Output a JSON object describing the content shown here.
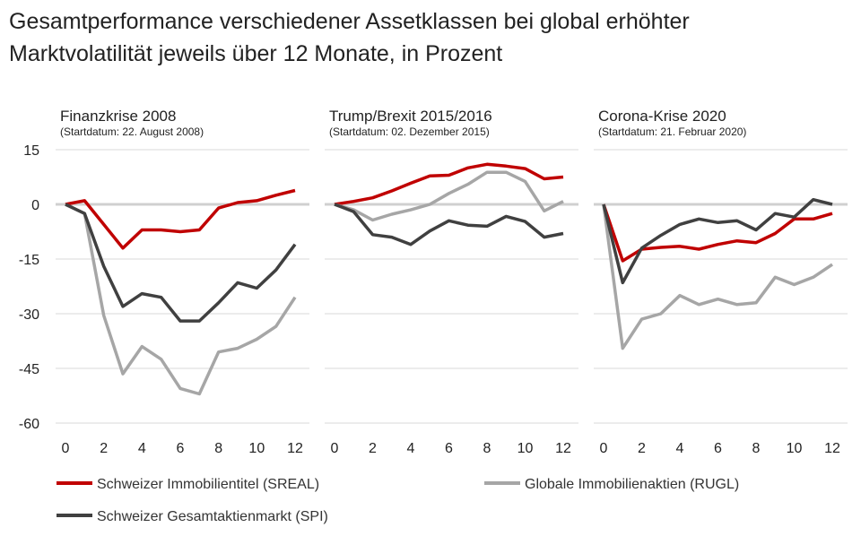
{
  "title_line1": "Gesamtperformance verschiedener Assetklassen bei global erhöhter",
  "title_line2": "Marktvolatilität jeweils über 12 Monate, in Prozent",
  "chart_data": [
    {
      "type": "line",
      "title": "Finanzkrise 2008",
      "subtitle": "(Startdatum: 22. August 2008)",
      "x": [
        0,
        1,
        2,
        3,
        4,
        5,
        6,
        7,
        8,
        9,
        10,
        11,
        12
      ],
      "x_ticks": [
        0,
        2,
        4,
        6,
        8,
        10,
        12
      ],
      "y_ticks": [
        15,
        0,
        -15,
        -30,
        -45,
        -60
      ],
      "ylim": [
        -60,
        15
      ],
      "grid": true,
      "series": [
        {
          "name": "Schweizer Immobilientitel (SREAL)",
          "color": "#c00000",
          "values": [
            0,
            1,
            -5.5,
            -12,
            -7,
            -7,
            -7.5,
            -7,
            -1,
            0.5,
            1,
            2.5,
            3.8
          ]
        },
        {
          "name": "Globale Immobilienaktien (RUGL)",
          "color": "#a6a6a6",
          "values": [
            0,
            -2.5,
            -30.5,
            -46.5,
            -39,
            -42.5,
            -50.5,
            -52,
            -40.5,
            -39.5,
            -37,
            -33.5,
            -25.5
          ]
        },
        {
          "name": "Schweizer Gesamtaktienmarkt (SPI)",
          "color": "#404040",
          "values": [
            0,
            -2.5,
            -17,
            -28,
            -24.5,
            -25.5,
            -32,
            -32,
            -27,
            -21.5,
            -23,
            -18,
            -11
          ]
        }
      ]
    },
    {
      "type": "line",
      "title": "Trump/Brexit 2015/2016",
      "subtitle": "(Startdatum: 02. Dezember 2015)",
      "x": [
        0,
        1,
        2,
        3,
        4,
        5,
        6,
        7,
        8,
        9,
        10,
        11,
        12
      ],
      "x_ticks": [
        0,
        2,
        4,
        6,
        8,
        10,
        12
      ],
      "ylim": [
        -60,
        15
      ],
      "grid": true,
      "series": [
        {
          "name": "Schweizer Immobilientitel (SREAL)",
          "color": "#c00000",
          "values": [
            0,
            0.8,
            1.8,
            3.7,
            5.8,
            7.8,
            8,
            10,
            11,
            10.5,
            9.8,
            7,
            7.5
          ]
        },
        {
          "name": "Globale Immobilienaktien (RUGL)",
          "color": "#a6a6a6",
          "values": [
            0,
            -1.5,
            -4.3,
            -2.7,
            -1.5,
            0,
            3,
            5.5,
            8.8,
            8.8,
            6.3,
            -1.8,
            0.8
          ]
        },
        {
          "name": "Schweizer Gesamtaktienmarkt (SPI)",
          "color": "#404040",
          "values": [
            0,
            -2,
            -8.3,
            -9,
            -11,
            -7.3,
            -4.5,
            -5.7,
            -6,
            -3.3,
            -4.7,
            -9,
            -8
          ]
        }
      ]
    },
    {
      "type": "line",
      "title": "Corona-Krise 2020",
      "subtitle": "(Startdatum: 21. Februar 2020)",
      "x": [
        0,
        1,
        2,
        3,
        4,
        5,
        6,
        7,
        8,
        9,
        10,
        11,
        12
      ],
      "x_ticks": [
        0,
        2,
        4,
        6,
        8,
        10,
        12
      ],
      "ylim": [
        -60,
        15
      ],
      "grid": true,
      "series": [
        {
          "name": "Schweizer Immobilientitel (SREAL)",
          "color": "#c00000",
          "values": [
            0,
            -15.5,
            -12.3,
            -11.8,
            -11.5,
            -12.3,
            -11,
            -10,
            -10.5,
            -8,
            -4,
            -4,
            -2.5
          ]
        },
        {
          "name": "Globale Immobilienaktien (RUGL)",
          "color": "#a6a6a6",
          "values": [
            0,
            -39.5,
            -31.5,
            -30,
            -25,
            -27.5,
            -26,
            -27.5,
            -27,
            -20,
            -22,
            -20,
            -16.5
          ]
        },
        {
          "name": "Schweizer Gesamtaktienmarkt (SPI)",
          "color": "#404040",
          "values": [
            0,
            -21.5,
            -12,
            -8.5,
            -5.5,
            -4,
            -5,
            -4.5,
            -7,
            -2.5,
            -3.5,
            1.3,
            0
          ]
        }
      ]
    }
  ],
  "legend": [
    {
      "label": "Schweizer Immobilientitel (SREAL)",
      "color": "#c00000"
    },
    {
      "label": "Globale Immobilienaktien (RUGL)",
      "color": "#a6a6a6"
    },
    {
      "label": "Schweizer Gesamtaktienmarkt (SPI)",
      "color": "#404040"
    }
  ]
}
